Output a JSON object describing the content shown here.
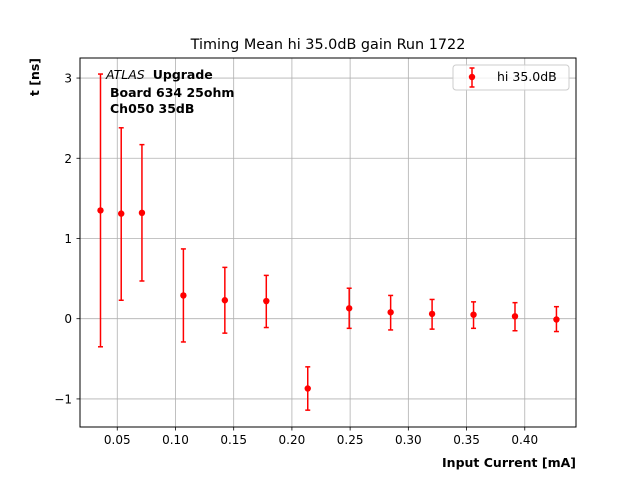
{
  "chart_data": {
    "type": "scatter",
    "title": "Timing Mean hi 35.0dB gain Run 1722",
    "xlabel": "Input Current [mA]",
    "ylabel": "t [ns]",
    "xlim": [
      0.018,
      0.444
    ],
    "ylim": [
      -1.35,
      3.25
    ],
    "xticks": [
      0.05,
      0.1,
      0.15,
      0.2,
      0.25,
      0.3,
      0.35,
      0.4
    ],
    "xtick_labels": [
      "0.05",
      "0.10",
      "0.15",
      "0.20",
      "0.25",
      "0.30",
      "0.35",
      "0.40"
    ],
    "yticks": [
      -1,
      0,
      1,
      2,
      3
    ],
    "ytick_labels": [
      "−1",
      "0",
      "1",
      "2",
      "3"
    ],
    "grid": true,
    "legend_position": "top-right",
    "series": [
      {
        "name": "hi 35.0dB",
        "color": "#ff0000",
        "marker": "circle",
        "points": [
          {
            "x": 0.0356,
            "y": 1.35,
            "ylo": -0.35,
            "yhi": 3.05
          },
          {
            "x": 0.0534,
            "y": 1.31,
            "ylo": 0.23,
            "yhi": 2.38
          },
          {
            "x": 0.0712,
            "y": 1.32,
            "ylo": 0.47,
            "yhi": 2.17
          },
          {
            "x": 0.1068,
            "y": 0.29,
            "ylo": -0.29,
            "yhi": 0.87
          },
          {
            "x": 0.1424,
            "y": 0.23,
            "ylo": -0.18,
            "yhi": 0.64
          },
          {
            "x": 0.178,
            "y": 0.22,
            "ylo": -0.11,
            "yhi": 0.54
          },
          {
            "x": 0.2136,
            "y": -0.87,
            "ylo": -1.14,
            "yhi": -0.6
          },
          {
            "x": 0.2492,
            "y": 0.13,
            "ylo": -0.12,
            "yhi": 0.38
          },
          {
            "x": 0.2848,
            "y": 0.08,
            "ylo": -0.14,
            "yhi": 0.29
          },
          {
            "x": 0.3204,
            "y": 0.06,
            "ylo": -0.13,
            "yhi": 0.24
          },
          {
            "x": 0.356,
            "y": 0.05,
            "ylo": -0.12,
            "yhi": 0.21
          },
          {
            "x": 0.3916,
            "y": 0.03,
            "ylo": -0.15,
            "yhi": 0.2
          },
          {
            "x": 0.4272,
            "y": -0.01,
            "ylo": -0.16,
            "yhi": 0.15
          }
        ]
      }
    ],
    "annotation": {
      "atlas": "ATLAS",
      "upgrade": "Upgrade",
      "line2": "Board 634 25ohm",
      "line3": "Ch050 35dB"
    }
  }
}
